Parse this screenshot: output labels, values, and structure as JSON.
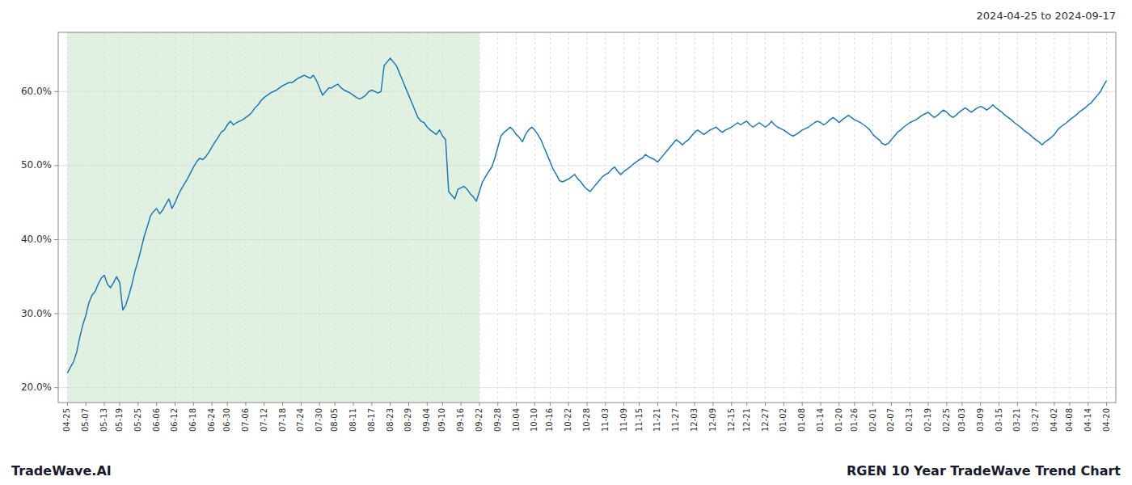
{
  "chart_data": {
    "type": "line",
    "title": "2024-04-25 to 2024-09-17",
    "annotations": [
      "TradeWave.AI",
      "RGEN 10 Year TradeWave Trend Chart"
    ],
    "color": "#1f77b4",
    "grid": true,
    "ylim": [
      0.18,
      0.68
    ],
    "yticks": [
      {
        "value": 0.2,
        "label": "20.0%"
      },
      {
        "value": 0.3,
        "label": "30.0%"
      },
      {
        "value": 0.4,
        "label": "40.0%"
      },
      {
        "value": 0.5,
        "label": "50.0%"
      },
      {
        "value": 0.6,
        "label": "60.0%"
      }
    ],
    "shade": {
      "start": "04-25",
      "end": "09-22",
      "color": "#c8e6c9"
    },
    "categories": [
      "04-25",
      null,
      null,
      null,
      null,
      null,
      "05-07",
      null,
      null,
      null,
      null,
      null,
      "05-13",
      null,
      null,
      null,
      null,
      "05-19",
      null,
      null,
      null,
      null,
      null,
      "05-25",
      null,
      null,
      null,
      null,
      null,
      "06-06",
      null,
      null,
      null,
      null,
      null,
      "06-12",
      null,
      null,
      null,
      null,
      null,
      "06-18",
      null,
      null,
      null,
      null,
      null,
      "06-24",
      null,
      null,
      null,
      null,
      "06-30",
      null,
      null,
      null,
      null,
      null,
      "07-06",
      null,
      null,
      null,
      null,
      null,
      "07-12",
      null,
      null,
      null,
      null,
      null,
      "07-18",
      null,
      null,
      null,
      null,
      null,
      "07-24",
      null,
      null,
      null,
      null,
      null,
      "07-30",
      null,
      null,
      null,
      null,
      "08-05",
      null,
      null,
      null,
      null,
      null,
      "08-11",
      null,
      null,
      null,
      null,
      null,
      "08-17",
      null,
      null,
      null,
      null,
      null,
      "08-23",
      null,
      null,
      null,
      null,
      null,
      "08-29",
      null,
      null,
      null,
      null,
      null,
      "09-04",
      null,
      null,
      null,
      null,
      "09-10",
      null,
      null,
      null,
      null,
      null,
      "09-16",
      null,
      null,
      null,
      null,
      null,
      "09-22",
      null,
      null,
      null,
      null,
      null,
      "09-28",
      null,
      null,
      null,
      null,
      null,
      "10-04",
      null,
      null,
      null,
      null,
      null,
      "10-10",
      null,
      null,
      null,
      null,
      "10-16",
      null,
      null,
      null,
      null,
      null,
      "10-22",
      null,
      null,
      null,
      null,
      null,
      "10-28",
      null,
      null,
      null,
      null,
      null,
      "11-03",
      null,
      null,
      null,
      null,
      null,
      "11-09",
      null,
      null,
      null,
      null,
      "11-15",
      null,
      null,
      null,
      null,
      null,
      "11-21",
      null,
      null,
      null,
      null,
      null,
      "11-27",
      null,
      null,
      null,
      null,
      null,
      "12-03",
      null,
      null,
      null,
      null,
      null,
      "12-09",
      null,
      null,
      null,
      null,
      null,
      "12-15",
      null,
      null,
      null,
      null,
      "12-21",
      null,
      null,
      null,
      null,
      null,
      "12-27",
      null,
      null,
      null,
      null,
      null,
      "01-02",
      null,
      null,
      null,
      null,
      null,
      "01-08",
      null,
      null,
      null,
      null,
      null,
      "01-14",
      null,
      null,
      null,
      null,
      null,
      "01-20",
      null,
      null,
      null,
      null,
      "01-26",
      null,
      null,
      null,
      null,
      null,
      "02-01",
      null,
      null,
      null,
      null,
      null,
      "02-07",
      null,
      null,
      null,
      null,
      null,
      "02-13",
      null,
      null,
      null,
      null,
      null,
      "02-19",
      null,
      null,
      null,
      null,
      null,
      "02-25",
      null,
      null,
      null,
      null,
      "03-03",
      null,
      null,
      null,
      null,
      null,
      "03-09",
      null,
      null,
      null,
      null,
      null,
      "03-15",
      null,
      null,
      null,
      null,
      null,
      "03-21",
      null,
      null,
      null,
      null,
      null,
      "03-27",
      null,
      null,
      null,
      null,
      null,
      "04-02",
      null,
      null,
      null,
      null,
      "04-08",
      null,
      null,
      null,
      null,
      null,
      "04-14",
      null,
      null,
      null,
      null,
      null,
      "04-20"
    ],
    "values": [
      0.22,
      0.228,
      0.235,
      0.248,
      0.268,
      0.285,
      0.298,
      0.315,
      0.325,
      0.33,
      0.34,
      0.348,
      0.352,
      0.34,
      0.335,
      0.342,
      0.35,
      0.342,
      0.305,
      0.312,
      0.325,
      0.34,
      0.358,
      0.372,
      0.388,
      0.405,
      0.418,
      0.432,
      0.438,
      0.442,
      0.435,
      0.44,
      0.448,
      0.455,
      0.442,
      0.45,
      0.46,
      0.468,
      0.475,
      0.482,
      0.49,
      0.498,
      0.505,
      0.51,
      0.508,
      0.512,
      0.518,
      0.525,
      0.532,
      0.538,
      0.545,
      0.548,
      0.555,
      0.56,
      0.555,
      0.558,
      0.56,
      0.562,
      0.565,
      0.568,
      0.572,
      0.578,
      0.582,
      0.588,
      0.592,
      0.595,
      0.598,
      0.6,
      0.602,
      0.605,
      0.608,
      0.61,
      0.612,
      0.612,
      0.615,
      0.618,
      0.62,
      0.622,
      0.62,
      0.618,
      0.622,
      0.615,
      0.605,
      0.595,
      0.6,
      0.605,
      0.605,
      0.608,
      0.61,
      0.605,
      0.602,
      0.6,
      0.598,
      0.595,
      0.592,
      0.59,
      0.592,
      0.595,
      0.6,
      0.602,
      0.6,
      0.598,
      0.6,
      0.635,
      0.64,
      0.645,
      0.64,
      0.635,
      0.625,
      0.615,
      0.605,
      0.595,
      0.585,
      0.575,
      0.565,
      0.56,
      0.558,
      0.552,
      0.548,
      0.545,
      0.542,
      0.548,
      0.54,
      0.535,
      0.465,
      0.46,
      0.455,
      0.468,
      0.47,
      0.472,
      0.468,
      0.462,
      0.458,
      0.452,
      0.465,
      0.478,
      0.485,
      0.492,
      0.498,
      0.51,
      0.525,
      0.54,
      0.545,
      0.548,
      0.552,
      0.548,
      0.542,
      0.538,
      0.532,
      0.542,
      0.548,
      0.552,
      0.548,
      0.542,
      0.535,
      0.525,
      0.515,
      0.505,
      0.495,
      0.488,
      0.48,
      0.478,
      0.48,
      0.482,
      0.485,
      0.488,
      0.482,
      0.478,
      0.472,
      0.468,
      0.465,
      0.47,
      0.475,
      0.48,
      0.485,
      0.488,
      0.49,
      0.495,
      0.498,
      0.492,
      0.488,
      0.492,
      0.495,
      0.498,
      0.502,
      0.505,
      0.508,
      0.51,
      0.515,
      0.512,
      0.51,
      0.508,
      0.505,
      0.51,
      0.515,
      0.52,
      0.525,
      0.53,
      0.535,
      0.532,
      0.528,
      0.532,
      0.535,
      0.54,
      0.545,
      0.548,
      0.545,
      0.542,
      0.545,
      0.548,
      0.55,
      0.552,
      0.548,
      0.545,
      0.548,
      0.55,
      0.552,
      0.555,
      0.558,
      0.555,
      0.558,
      0.56,
      0.555,
      0.552,
      0.555,
      0.558,
      0.555,
      0.552,
      0.555,
      0.56,
      0.555,
      0.552,
      0.55,
      0.548,
      0.545,
      0.542,
      0.54,
      0.542,
      0.545,
      0.548,
      0.55,
      0.552,
      0.555,
      0.558,
      0.56,
      0.558,
      0.555,
      0.558,
      0.562,
      0.565,
      0.562,
      0.558,
      0.562,
      0.565,
      0.568,
      0.565,
      0.562,
      0.56,
      0.558,
      0.555,
      0.552,
      0.548,
      0.542,
      0.538,
      0.535,
      0.53,
      0.528,
      0.53,
      0.535,
      0.54,
      0.545,
      0.548,
      0.552,
      0.555,
      0.558,
      0.56,
      0.562,
      0.565,
      0.568,
      0.57,
      0.572,
      0.568,
      0.565,
      0.568,
      0.572,
      0.575,
      0.572,
      0.568,
      0.565,
      0.568,
      0.572,
      0.575,
      0.578,
      0.575,
      0.572,
      0.575,
      0.578,
      0.58,
      0.578,
      0.575,
      0.578,
      0.582,
      0.578,
      0.575,
      0.572,
      0.568,
      0.565,
      0.562,
      0.558,
      0.555,
      0.552,
      0.548,
      0.545,
      0.542,
      0.538,
      0.535,
      0.532,
      0.528,
      0.532,
      0.535,
      0.538,
      0.542,
      0.548,
      0.552,
      0.555,
      0.558,
      0.562,
      0.565,
      0.568,
      0.572,
      0.575,
      0.578,
      0.582,
      0.585,
      0.59,
      0.595,
      0.6,
      0.608,
      0.615
    ]
  }
}
